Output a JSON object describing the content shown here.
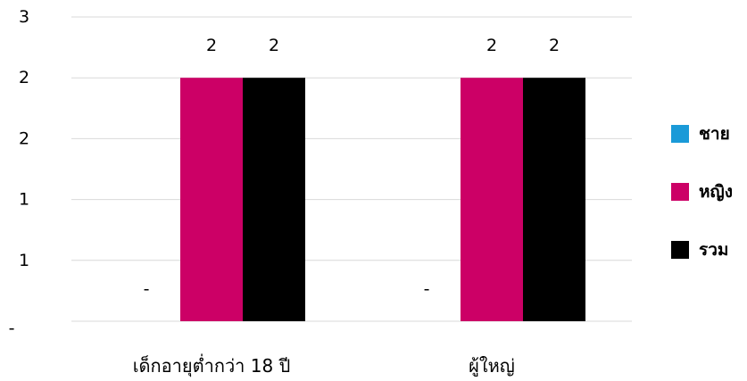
{
  "chart_data": {
    "type": "bar",
    "categories": [
      "เด็กอายุต่ำกว่า 18 ปี",
      "ผู้ใหญ่"
    ],
    "series": [
      {
        "name": "ชาย",
        "values": [
          0,
          0
        ],
        "color": "#1a9ad8",
        "data_labels": [
          "-",
          "-"
        ]
      },
      {
        "name": "หญิง",
        "values": [
          2,
          2
        ],
        "color": "#cc0066",
        "data_labels": [
          "2",
          "2"
        ]
      },
      {
        "name": "รวม",
        "values": [
          2,
          2
        ],
        "color": "#000000",
        "data_labels": [
          "2",
          "2"
        ]
      }
    ],
    "y_ticks": [
      {
        "value": 0,
        "label": "-"
      },
      {
        "value": 0.5,
        "label": "1"
      },
      {
        "value": 1,
        "label": "1"
      },
      {
        "value": 1.5,
        "label": "2"
      },
      {
        "value": 2,
        "label": "2"
      },
      {
        "value": 2.5,
        "label": "3"
      }
    ],
    "ylim": [
      0,
      2.5
    ],
    "grid": true,
    "legend": "right"
  }
}
